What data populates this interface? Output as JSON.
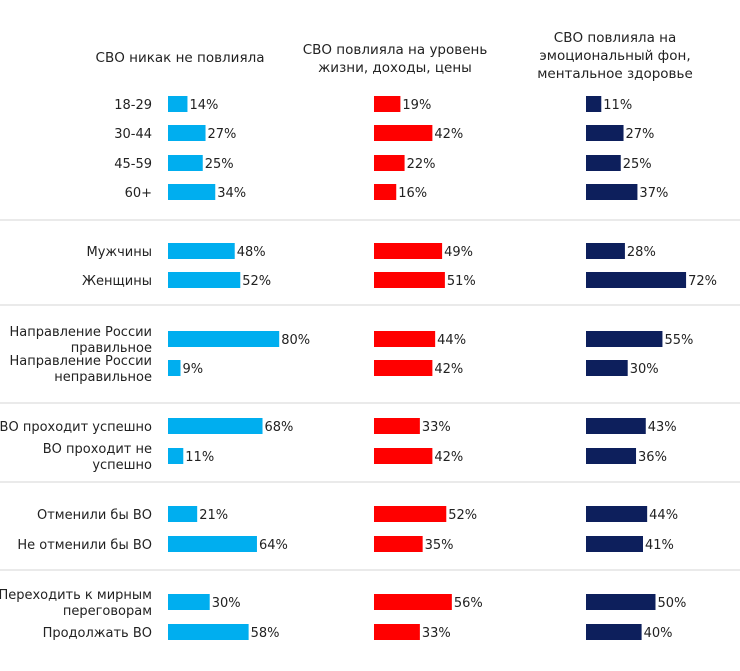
{
  "chart_data": {
    "type": "bar",
    "orientation": "horizontal",
    "colors": [
      "#00AEEF",
      "#FF0000",
      "#0D1F5C"
    ],
    "series": [
      {
        "name": "СВО никак не повлияла",
        "values": [
          14,
          27,
          25,
          34,
          48,
          52,
          80,
          9,
          68,
          11,
          21,
          64,
          30,
          58
        ]
      },
      {
        "name": "СВО повлияла на уровень жизни, доходы, цены",
        "values": [
          19,
          42,
          22,
          16,
          49,
          51,
          44,
          42,
          33,
          42,
          52,
          35,
          56,
          33
        ]
      },
      {
        "name": "СВО повлияла на эмоциональный фон, ментальное здоровье",
        "values": [
          11,
          27,
          25,
          37,
          28,
          72,
          55,
          30,
          43,
          36,
          44,
          41,
          50,
          40
        ]
      }
    ],
    "series_header_lines": [
      [
        "СВО никак не повлияла"
      ],
      [
        "СВО повлияла на уровень",
        "жизни, доходы, цены"
      ],
      [
        "СВО повлияла на",
        "эмоциональный фон,",
        "ментальное здоровье"
      ]
    ],
    "categories": [
      [
        "18-29"
      ],
      [
        "30-44"
      ],
      [
        "45-59"
      ],
      [
        "60+"
      ],
      [
        "Мужчины"
      ],
      [
        "Женщины"
      ],
      [
        "Направление России",
        "правильное"
      ],
      [
        "Направление России",
        "неправильное"
      ],
      [
        "ВО проходит успешно"
      ],
      [
        "ВО проходит не",
        "успешно"
      ],
      [
        "Отменили бы ВО"
      ],
      [
        "Не отменили бы ВО"
      ],
      [
        "Переходить к мирным",
        "переговорам"
      ],
      [
        "Продолжать ВО"
      ]
    ],
    "groups": [
      [
        0,
        1,
        2,
        3
      ],
      [
        4,
        5
      ],
      [
        6,
        7
      ],
      [
        8,
        9
      ],
      [
        10,
        11
      ],
      [
        12,
        13
      ]
    ],
    "value_suffix": "%",
    "grid": false,
    "legend": "none"
  }
}
